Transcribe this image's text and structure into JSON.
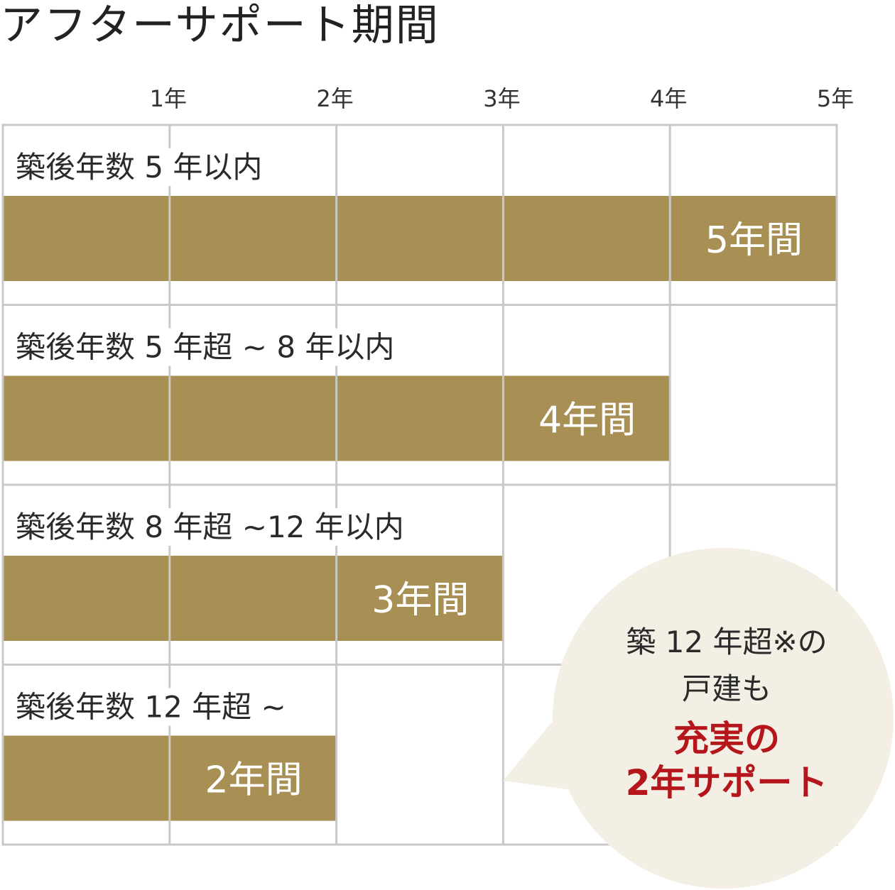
{
  "title": "アフターサポート期間",
  "colors": {
    "bar": "#a88f53",
    "grid": "#c9c9c9",
    "bubble": "#f4efe4",
    "highlight": "#b5161b"
  },
  "chart_data": {
    "type": "bar",
    "orientation": "horizontal",
    "title": "アフターサポート期間",
    "x_ticks": [
      "1年",
      "2年",
      "3年",
      "4年",
      "5年"
    ],
    "xlim": [
      0,
      5
    ],
    "grid": true,
    "categories": [
      "築後年数 5 年以内",
      "築後年数 5 年超 ~ 8 年以内",
      "築後年数 8 年超 ~12 年以内",
      "築後年数 12 年超 ~"
    ],
    "values": [
      5,
      4,
      3,
      2
    ],
    "data_labels": [
      "5年間",
      "4年間",
      "3年間",
      "2年間"
    ]
  },
  "callout": {
    "line1": "築 12 年超※の",
    "line2": "戸建も",
    "highlight1": "充実の",
    "highlight2": "2年サポート"
  }
}
